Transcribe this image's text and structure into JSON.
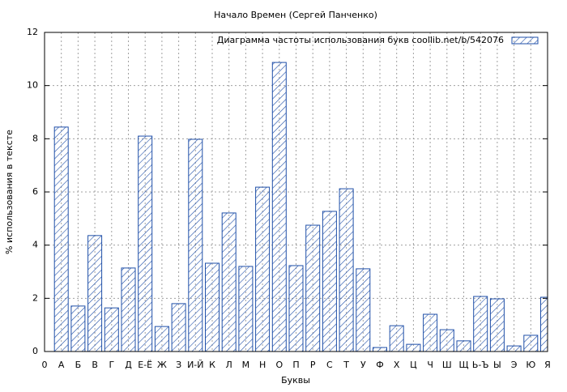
{
  "chart_data": {
    "type": "bar",
    "title": "Начало Времен (Сергей Панченко)",
    "x_label": "Буквы",
    "y_label": "% использования в тексте",
    "categories": [
      "0",
      "А",
      "Б",
      "В",
      "Г",
      "Д",
      "Е-Ё",
      "Ж",
      "З",
      "И-Й",
      "К",
      "Л",
      "М",
      "Н",
      "О",
      "П",
      "Р",
      "С",
      "Т",
      "У",
      "Ф",
      "Х",
      "Ц",
      "Ч",
      "Ш",
      "Щ",
      "Ь-Ъ",
      "Ы",
      "Э",
      "Ю",
      "Я"
    ],
    "series": [
      {
        "name": "Диаграмма частоты использования букв  coollib.net/b/542076",
        "color": "#1f4fa8",
        "values": [
          null,
          8.44,
          1.71,
          4.36,
          1.64,
          3.14,
          8.1,
          0.94,
          1.8,
          7.98,
          3.32,
          5.21,
          3.2,
          6.18,
          10.87,
          3.23,
          4.75,
          5.27,
          6.12,
          3.11,
          0.15,
          0.97,
          0.27,
          1.4,
          0.82,
          0.4,
          2.07,
          1.98,
          0.21,
          0.61,
          2.04
        ]
      }
    ],
    "ylim": [
      0,
      12
    ],
    "yticks": [
      0,
      2,
      4,
      6,
      8,
      10,
      12
    ],
    "grid": true,
    "legend": "top-right"
  }
}
